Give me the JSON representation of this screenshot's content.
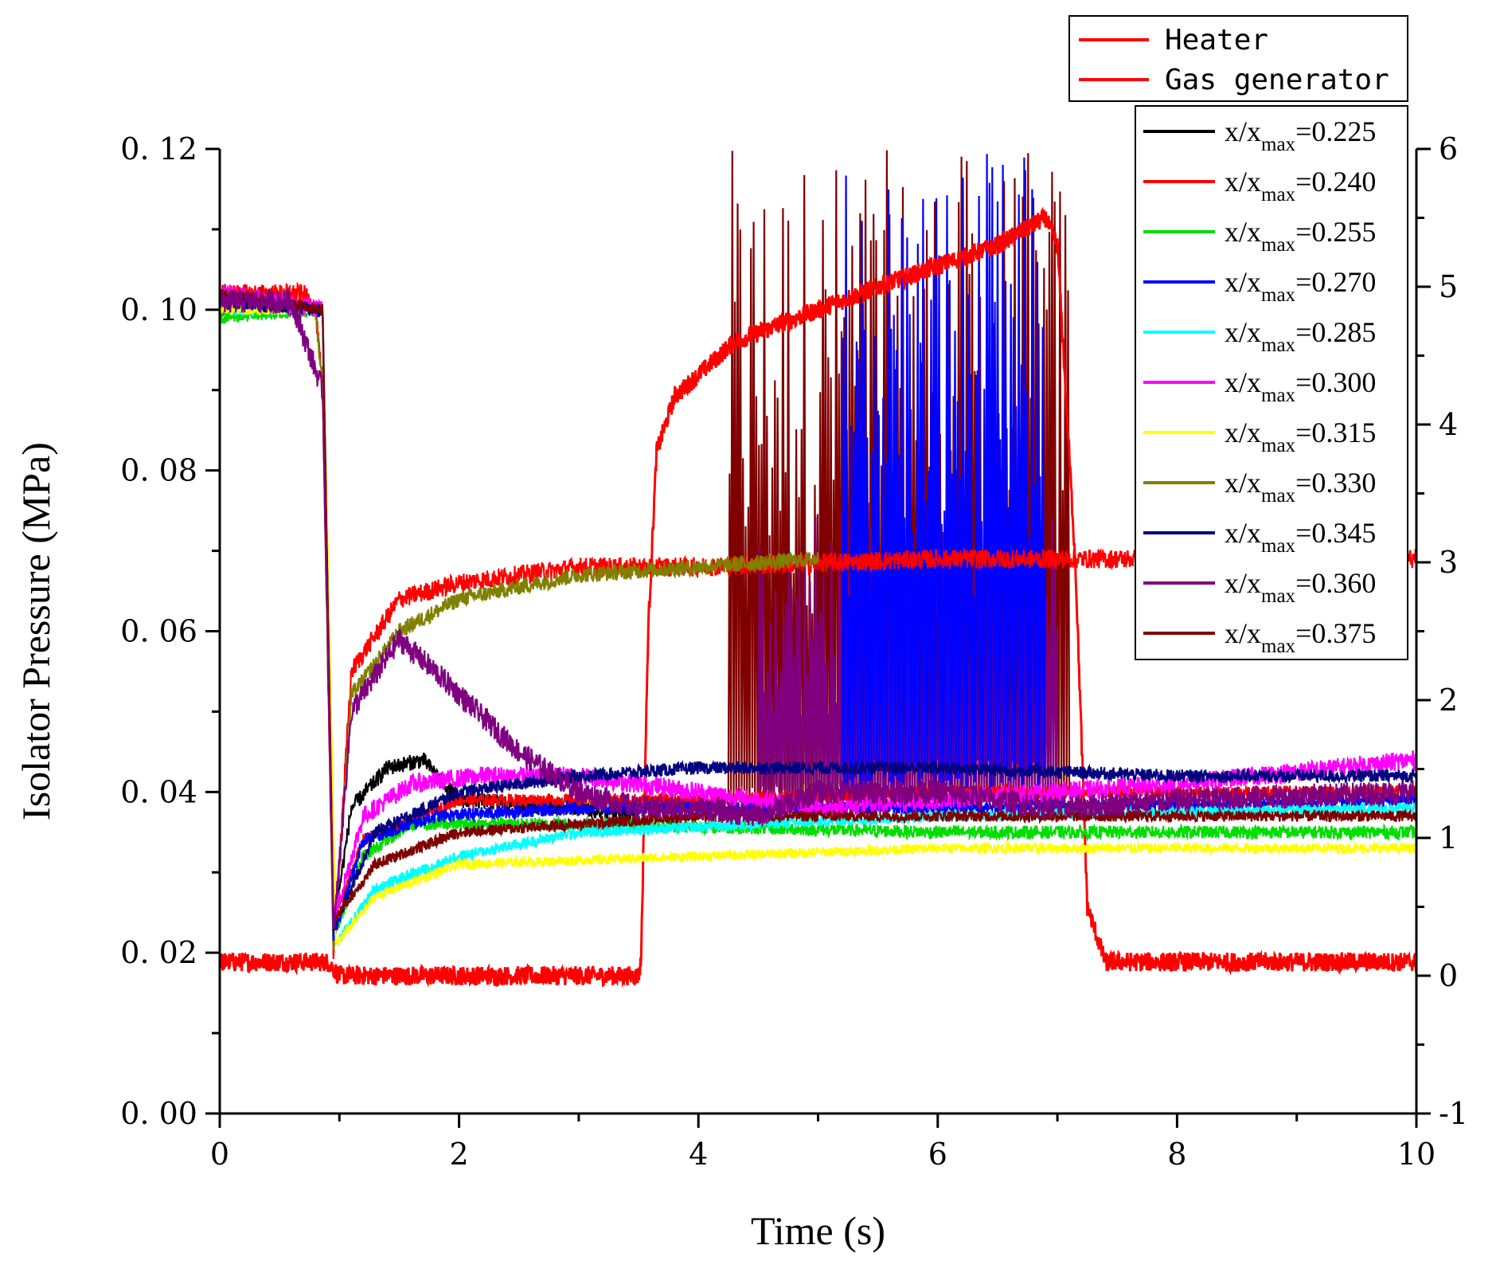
{
  "chart_data": {
    "type": "line",
    "title": "",
    "xlabel": "Time (s)",
    "ylabel": "Isolator Pressure (MPa)",
    "y2label": "",
    "xlim": [
      0,
      10
    ],
    "ylim": [
      0.0,
      0.12
    ],
    "y2lim": [
      -1,
      6
    ],
    "x_ticks": [
      0,
      2,
      4,
      6,
      8,
      10
    ],
    "x_tick_labels": [
      "0",
      "2",
      "4",
      "6",
      "8",
      "10"
    ],
    "y_ticks": [
      0.0,
      0.02,
      0.04,
      0.06,
      0.08,
      0.1,
      0.12
    ],
    "y_tick_labels": [
      "0. 00",
      "0. 02",
      "0. 04",
      "0. 06",
      "0. 08",
      "0. 10",
      "0. 12"
    ],
    "y2_ticks": [
      -1,
      0,
      1,
      2,
      3,
      4,
      5,
      6
    ],
    "y2_tick_labels": [
      "-1",
      "0",
      "1",
      "2",
      "3",
      "4",
      "5",
      "6"
    ],
    "grid": false,
    "legend_top": {
      "placement": "top-right",
      "entries": [
        {
          "label": "Heater",
          "color": "#ff0000"
        },
        {
          "label": "Gas generator",
          "color": "#ff0000"
        }
      ]
    },
    "legend_main": {
      "placement": "top-right",
      "prefix": "x/x",
      "sub": "max",
      "entries": [
        {
          "value": "=0.225",
          "color": "#000000"
        },
        {
          "value": "=0.240",
          "color": "#ff0000"
        },
        {
          "value": "=0.255",
          "color": "#00dd00"
        },
        {
          "value": "=0.270",
          "color": "#0000ff"
        },
        {
          "value": "=0.285",
          "color": "#00ffff"
        },
        {
          "value": "=0.300",
          "color": "#ff00ff"
        },
        {
          "value": "=0.315",
          "color": "#ffff00"
        },
        {
          "value": "=0.330",
          "color": "#808000"
        },
        {
          "value": "=0.345",
          "color": "#000080"
        },
        {
          "value": "=0.360",
          "color": "#800080"
        },
        {
          "value": "=0.375",
          "color": "#800000"
        }
      ]
    },
    "series": [
      {
        "color": "#ff0000",
        "axis": "right",
        "noise": 0.07,
        "x": [
          0,
          0.6,
          0.9,
          1.0,
          3.5,
          3.52,
          3.58,
          3.65,
          3.8,
          4.3,
          5.5,
          6.5,
          6.9,
          7.0,
          7.15,
          7.25,
          7.4,
          10
        ],
        "y": [
          0.1,
          0.1,
          0.1,
          0.0,
          0.0,
          0.1,
          2.5,
          3.8,
          4.2,
          4.6,
          5.0,
          5.3,
          5.5,
          5.3,
          3.0,
          0.5,
          0.1,
          0.1
        ]
      },
      {
        "color": "#ff0000",
        "axis": "left",
        "noise": 0.0012,
        "x": [
          0,
          0.7,
          0.8,
          0.86,
          0.95,
          1.1,
          1.5,
          2.0,
          3.0,
          4.0,
          6.0,
          8.0,
          10.0
        ],
        "y": [
          0.102,
          0.102,
          0.1,
          0.09,
          0.02,
          0.055,
          0.064,
          0.066,
          0.068,
          0.068,
          0.069,
          0.069,
          0.069
        ]
      },
      {
        "color": "#808000",
        "axis": "left",
        "noise": 0.001,
        "x": [
          0,
          0.8,
          0.86,
          0.95,
          1.1,
          1.5,
          2.0,
          3.0,
          4.0,
          5.0
        ],
        "y": [
          0.1,
          0.1,
          0.09,
          0.02,
          0.052,
          0.06,
          0.064,
          0.067,
          0.068,
          0.069
        ]
      },
      {
        "color": "#000000",
        "axis": "left",
        "noise": 0.001,
        "x": [
          0,
          0.86,
          0.95,
          1.1,
          1.4,
          1.7,
          2.0,
          3.0,
          3.5
        ],
        "y": [
          0.101,
          0.1,
          0.023,
          0.038,
          0.043,
          0.044,
          0.039,
          0.038,
          0.037
        ]
      },
      {
        "color": "#ff0000",
        "axis": "left",
        "noise": 0.0008,
        "x": [
          0.95,
          1.2,
          2.0,
          4.0,
          6.0,
          8.0,
          10.0
        ],
        "y": [
          0.024,
          0.034,
          0.039,
          0.039,
          0.04,
          0.04,
          0.04
        ]
      },
      {
        "color": "#00dd00",
        "axis": "left",
        "noise": 0.0008,
        "x": [
          0,
          0.86,
          0.95,
          1.2,
          1.6,
          3.0,
          6.0,
          8.0,
          10.0
        ],
        "y": [
          0.099,
          0.1,
          0.022,
          0.032,
          0.036,
          0.036,
          0.035,
          0.035,
          0.035
        ]
      },
      {
        "color": "#0000ff",
        "axis": "left",
        "noise": 0.0008,
        "x": [
          0,
          0.86,
          0.95,
          1.2,
          1.8,
          3.0,
          6.0,
          10.0
        ],
        "y": [
          0.101,
          0.1,
          0.022,
          0.034,
          0.037,
          0.038,
          0.038,
          0.039
        ]
      },
      {
        "color": "#00ffff",
        "axis": "left",
        "noise": 0.0007,
        "x": [
          0,
          0.86,
          0.97,
          1.3,
          2.0,
          3.0,
          6.0,
          10.0
        ],
        "y": [
          0.1,
          0.1,
          0.021,
          0.028,
          0.032,
          0.035,
          0.037,
          0.038
        ]
      },
      {
        "color": "#ffff00",
        "axis": "left",
        "noise": 0.0006,
        "x": [
          0,
          0.86,
          0.97,
          1.3,
          2.0,
          4.0,
          6.0,
          10.0
        ],
        "y": [
          0.1,
          0.1,
          0.021,
          0.027,
          0.031,
          0.032,
          0.033,
          0.033
        ]
      },
      {
        "color": "#ff00ff",
        "axis": "left",
        "noise": 0.0012,
        "x": [
          0,
          0.86,
          0.95,
          1.2,
          1.6,
          2.2,
          3.0,
          4.0,
          5.0,
          6.0,
          8.0,
          10.0
        ],
        "y": [
          0.102,
          0.1,
          0.024,
          0.037,
          0.041,
          0.042,
          0.042,
          0.04,
          0.038,
          0.039,
          0.041,
          0.044
        ]
      },
      {
        "color": "#000080",
        "axis": "left",
        "noise": 0.0008,
        "x": [
          0,
          0.86,
          0.95,
          1.3,
          2.0,
          3.0,
          4.0,
          6.0,
          8.0,
          10.0
        ],
        "y": [
          0.101,
          0.1,
          0.023,
          0.035,
          0.04,
          0.042,
          0.043,
          0.043,
          0.042,
          0.042
        ]
      },
      {
        "color": "#800000",
        "axis": "left",
        "noise": 0.0007,
        "x": [
          0,
          0.86,
          0.95,
          1.3,
          2.0,
          3.0,
          4.0,
          6.0,
          10.0
        ],
        "y": [
          0.102,
          0.1,
          0.024,
          0.031,
          0.035,
          0.036,
          0.037,
          0.037,
          0.037
        ]
      },
      {
        "color": "#800080",
        "axis": "left",
        "noise": 0.0015,
        "x": [
          0,
          0.6,
          0.86,
          0.95,
          1.1,
          1.5,
          1.8,
          2.5,
          3.0,
          3.5,
          4.0,
          4.5,
          5.0,
          6.0,
          7.0,
          8.0,
          10.0
        ],
        "y": [
          0.101,
          0.101,
          0.09,
          0.022,
          0.05,
          0.059,
          0.055,
          0.045,
          0.04,
          0.038,
          0.038,
          0.037,
          0.04,
          0.04,
          0.038,
          0.039,
          0.04
        ]
      }
    ],
    "oscillation_bursts": [
      {
        "color": "#800000",
        "x_start": 4.25,
        "x_end": 7.1,
        "y_min": 0.037,
        "y_max": 0.12
      },
      {
        "color": "#800080",
        "x_start": 4.5,
        "x_end": 7.0,
        "y_min": 0.037,
        "y_max": 0.075
      },
      {
        "color": "#0000ff",
        "x_start": 5.2,
        "x_end": 6.9,
        "y_min": 0.04,
        "y_max": 0.12
      }
    ]
  }
}
